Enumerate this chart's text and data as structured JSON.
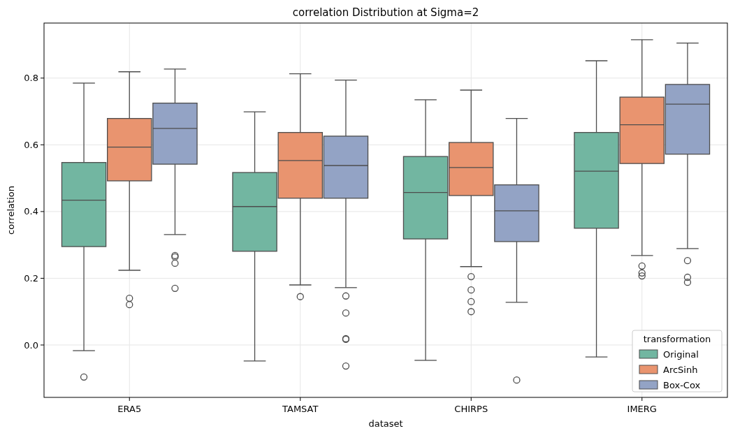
{
  "chart_data": {
    "type": "box",
    "title": "correlation Distribution at Sigma=2",
    "xlabel": "dataset",
    "ylabel": "correlation",
    "legend_title": "transformation",
    "legend": "bottom right",
    "grid": true,
    "categories": [
      "ERA5",
      "TAMSAT",
      "CHIRPS",
      "IMERG"
    ],
    "ylim": [
      -0.157,
      0.965
    ],
    "yticks": [
      {
        "value": 0,
        "label": "0.0"
      },
      0.2,
      0.4,
      0.6,
      0.8
    ],
    "series": [
      {
        "name": "Original",
        "color": "#72b6a1",
        "boxes": [
          {
            "low": -0.017,
            "q1": 0.295,
            "median": 0.434,
            "q3": 0.547,
            "high": 0.785,
            "outliers": [
              -0.096
            ]
          },
          {
            "low": -0.048,
            "q1": 0.281,
            "median": 0.415,
            "q3": 0.517,
            "high": 0.699
          },
          {
            "low": -0.046,
            "q1": 0.318,
            "median": 0.457,
            "q3": 0.565,
            "high": 0.735
          },
          {
            "low": -0.036,
            "q1": 0.35,
            "median": 0.521,
            "q3": 0.637,
            "high": 0.852
          }
        ]
      },
      {
        "name": "ArcSinh",
        "color": "#e9946f",
        "boxes": [
          {
            "low": 0.224,
            "q1": 0.492,
            "median": 0.593,
            "q3": 0.679,
            "high": 0.819,
            "outliers": [
              0.14,
              0.121
            ]
          },
          {
            "low": 0.18,
            "q1": 0.44,
            "median": 0.553,
            "q3": 0.637,
            "high": 0.813,
            "outliers": [
              0.145
            ]
          },
          {
            "low": 0.235,
            "q1": 0.448,
            "median": 0.532,
            "q3": 0.607,
            "high": 0.764,
            "outliers": [
              0.205,
              0.165,
              0.13,
              0.1
            ]
          },
          {
            "low": 0.268,
            "q1": 0.544,
            "median": 0.66,
            "q3": 0.743,
            "high": 0.915,
            "outliers": [
              0.237,
              0.216,
              0.207
            ]
          }
        ]
      },
      {
        "name": "Box-Cox",
        "color": "#93a3c5",
        "boxes": [
          {
            "low": 0.331,
            "q1": 0.542,
            "median": 0.649,
            "q3": 0.725,
            "high": 0.827,
            "outliers": [
              0.268,
              0.264,
              0.245,
              0.17
            ]
          },
          {
            "low": 0.172,
            "q1": 0.44,
            "median": 0.538,
            "q3": 0.626,
            "high": 0.794,
            "outliers": [
              0.147,
              0.096,
              0.019,
              0.017,
              -0.063
            ]
          },
          {
            "low": 0.128,
            "q1": 0.31,
            "median": 0.402,
            "q3": 0.48,
            "high": 0.679,
            "outliers": [
              -0.105
            ]
          },
          {
            "low": 0.289,
            "q1": 0.572,
            "median": 0.722,
            "q3": 0.781,
            "high": 0.905,
            "outliers": [
              0.253,
              0.203,
              0.188
            ]
          }
        ]
      }
    ]
  }
}
